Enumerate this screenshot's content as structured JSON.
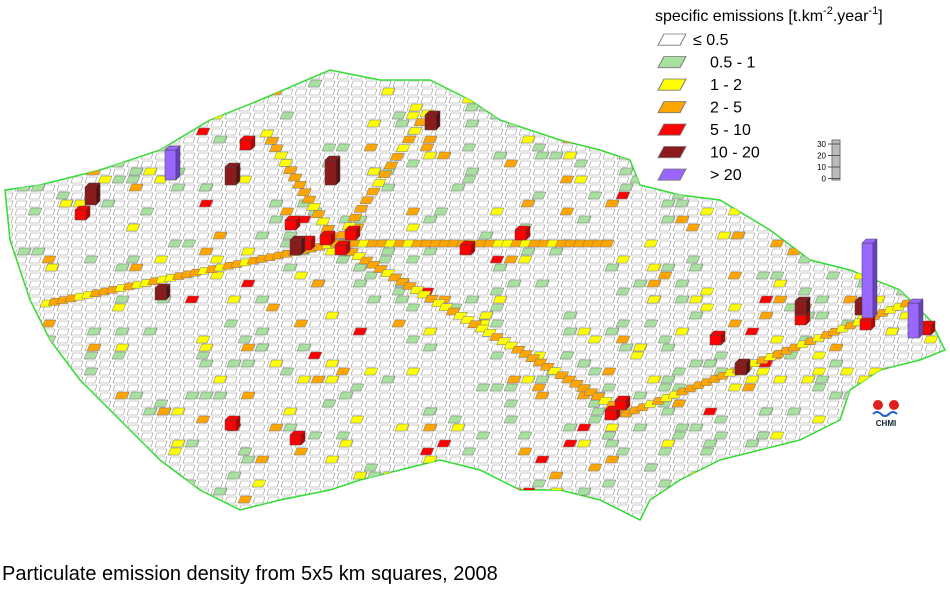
{
  "legend": {
    "title_parts": [
      "specific emissions [t.km",
      "-2",
      ".year",
      "-1",
      "]"
    ],
    "items": [
      "≤ 0.5",
      "0.5 - 1",
      "1 - 2",
      "2 - 5",
      "5 - 10",
      "10 - 20",
      "> 20"
    ]
  },
  "scale": {
    "ticks": [
      "30",
      "20",
      "10",
      "0"
    ]
  },
  "logo": "CHMI",
  "caption": "Particulate emission density from 5x5 km squares, 2008"
}
